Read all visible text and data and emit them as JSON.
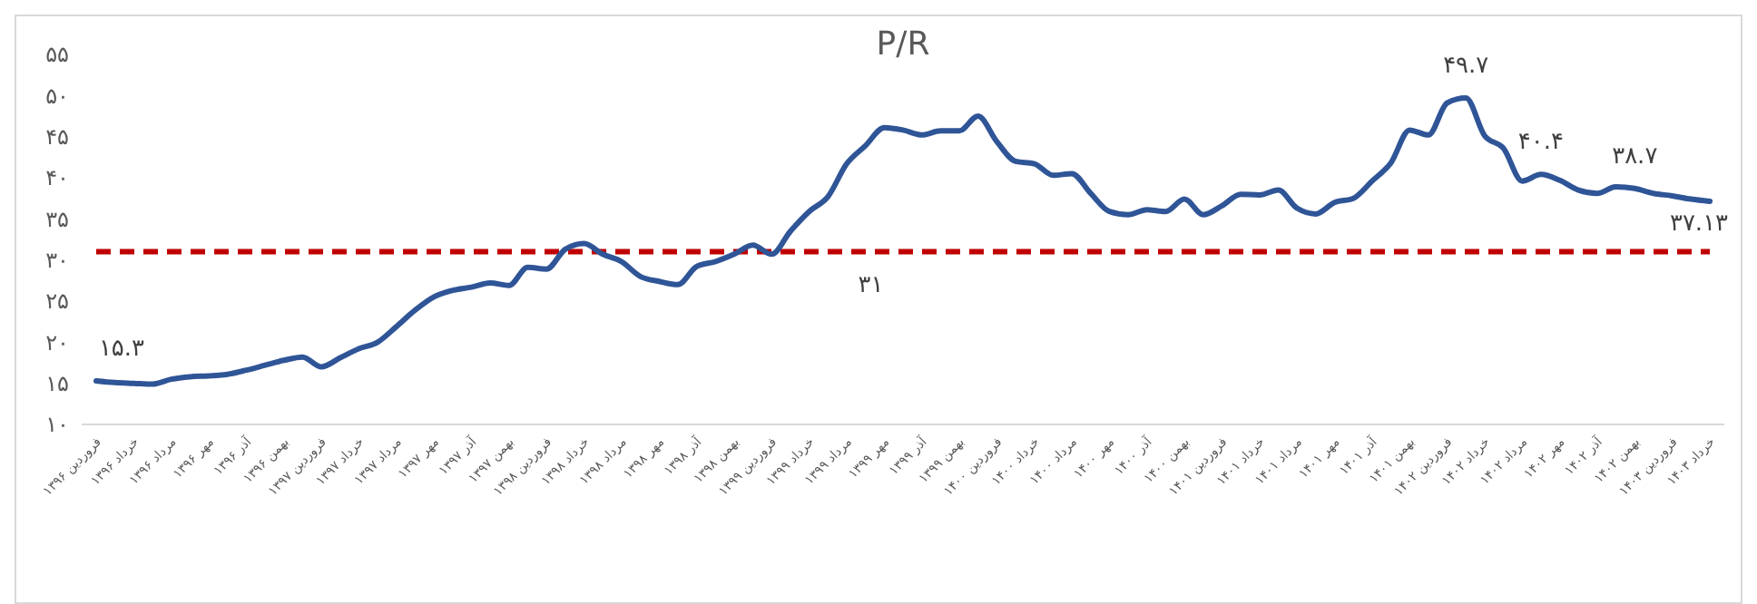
{
  "chart_data": {
    "type": "line",
    "title": "P/R",
    "categories": [
      "فروردین ۱۳۹۶",
      null,
      "خرداد ۱۳۹۶",
      null,
      "مرداد ۱۳۹۶",
      null,
      "مهر ۱۳۹۶",
      null,
      "آذر ۱۳۹۶",
      null,
      "بهمن ۱۳۹۶",
      null,
      "فروردین ۱۳۹۷",
      null,
      "خرداد ۱۳۹۷",
      null,
      "مرداد ۱۳۹۷",
      null,
      "مهر ۱۳۹۷",
      null,
      "آذر ۱۳۹۷",
      null,
      "بهمن ۱۳۹۷",
      null,
      "فروردین ۱۳۹۸",
      null,
      "خرداد ۱۳۹۸",
      null,
      "مرداد ۱۳۹۸",
      null,
      "مهر ۱۳۹۸",
      null,
      "آذر ۱۳۹۸",
      null,
      "بهمن ۱۳۹۸",
      null,
      "فروردین ۱۳۹۹",
      null,
      "خرداد ۱۳۹۹",
      null,
      "مرداد ۱۳۹۹",
      null,
      "مهر ۱۳۹۹",
      null,
      "آذر ۱۳۹۹",
      null,
      "بهمن ۱۳۹۹",
      null,
      "فروردین ۱۴۰۰",
      null,
      "خرداد ۱۴۰۰",
      null,
      "مرداد ۱۴۰۰",
      null,
      "مهر ۱۴۰۰",
      null,
      "آذر ۱۴۰۰",
      null,
      "بهمن ۱۴۰۰",
      null,
      "فروردین ۱۴۰۱",
      null,
      "خرداد ۱۴۰۱",
      null,
      "مرداد ۱۴۰۱",
      null,
      "مهر ۱۴۰۱",
      null,
      "آذر ۱۴۰۱",
      null,
      "بهمن ۱۴۰۱",
      null,
      "فروردین ۱۴۰۲",
      null,
      "خرداد ۱۴۰۲",
      null,
      "مرداد ۱۴۰۲",
      null,
      "مهر ۱۴۰۲",
      null,
      "آذر ۱۴۰۲",
      null,
      "بهمن ۱۴۰۲",
      null,
      "فروردین ۱۴۰۳",
      null,
      "خرداد ۱۴۰۳"
    ],
    "series": [
      {
        "color": "#2f5597",
        "values": [
          15.3,
          15.1,
          15.0,
          14.9,
          15.5,
          15.8,
          15.9,
          16.1,
          16.6,
          17.2,
          17.8,
          18.2,
          17.0,
          18.1,
          19.2,
          20.0,
          21.9,
          23.9,
          25.5,
          26.3,
          26.7,
          27.2,
          26.9,
          29.1,
          28.9,
          31.3,
          32.0,
          30.7,
          29.8,
          28.0,
          27.4,
          27.0,
          29.2,
          29.8,
          30.7,
          31.8,
          30.7,
          33.5,
          35.9,
          37.7,
          41.7,
          43.9,
          46.1,
          45.8,
          45.2,
          45.7,
          45.7,
          47.5,
          44.4,
          42.0,
          41.7,
          40.3,
          40.5,
          38.1,
          35.9,
          35.5,
          36.1,
          35.9,
          37.4,
          35.5,
          36.6,
          38.0,
          37.9,
          38.5,
          36.3,
          35.6,
          37.0,
          37.5,
          39.6,
          41.8,
          45.8,
          45.2,
          49.1,
          49.7,
          45.1,
          43.6,
          39.6,
          40.4,
          39.7,
          38.5,
          38.1,
          38.9,
          38.7,
          38.1,
          37.8,
          37.4,
          37.13
        ],
        "value_labels": [
          "۱۵.۳",
          null,
          null,
          null,
          null,
          null,
          null,
          null,
          null,
          null,
          null,
          null,
          null,
          null,
          null,
          null,
          null,
          null,
          null,
          null,
          null,
          null,
          null,
          null,
          null,
          null,
          null,
          null,
          null,
          null,
          null,
          null,
          null,
          null,
          null,
          null,
          null,
          null,
          null,
          null,
          null,
          null,
          null,
          null,
          null,
          null,
          null,
          null,
          null,
          null,
          null,
          null,
          null,
          null,
          null,
          null,
          null,
          null,
          null,
          null,
          null,
          null,
          null,
          null,
          null,
          null,
          null,
          null,
          null,
          null,
          null,
          null,
          null,
          "۴۹.۷",
          null,
          null,
          null,
          "۴۰.۴",
          null,
          null,
          null,
          null,
          "۳۸.۷",
          null,
          null,
          null,
          "۳۷.۱۳"
        ]
      }
    ],
    "ylim": [
      10,
      55
    ],
    "yticks": [
      {
        "value": 10,
        "label": "۱۰"
      },
      {
        "value": 15,
        "label": "۱۵"
      },
      {
        "value": 20,
        "label": "۲۰"
      },
      {
        "value": 25,
        "label": "۲۵"
      },
      {
        "value": 30,
        "label": "۳۰"
      },
      {
        "value": 35,
        "label": "۳۵"
      },
      {
        "value": 40,
        "label": "۴۰"
      },
      {
        "value": 45,
        "label": "۴۵"
      },
      {
        "value": 50,
        "label": "۵۰"
      },
      {
        "value": 55,
        "label": "۵۵"
      }
    ],
    "ref_lines": [
      {
        "axis": "y",
        "value": 31,
        "label": "۳۱",
        "color": "#c00000",
        "line_style": "dashed"
      }
    ],
    "grid": false
  }
}
